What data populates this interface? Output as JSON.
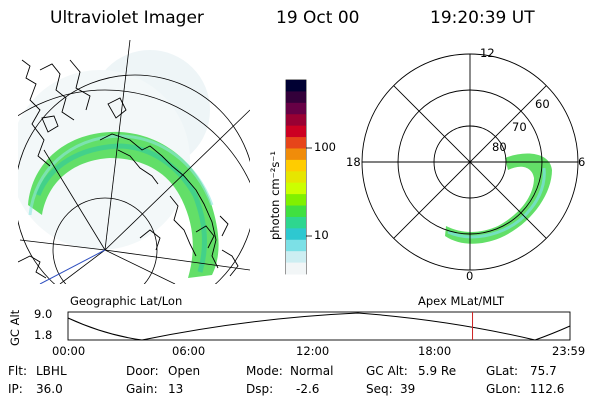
{
  "header": {
    "instrument": "Ultraviolet Imager",
    "date": "19 Oct 00",
    "time": "19:20:39 UT"
  },
  "colorbar": {
    "unit_label": "photon cm⁻²s⁻¹",
    "tick_labels": [
      "100",
      "10"
    ],
    "colors": [
      "#000033",
      "#33003a",
      "#660045",
      "#990033",
      "#cc0022",
      "#e6451a",
      "#f08c0a",
      "#ffcc00",
      "#e6e600",
      "#ccff00",
      "#80f000",
      "#40e040",
      "#2ed68f",
      "#2ec8d0",
      "#7ce0e6",
      "#cdeef2",
      "#f2f6f7"
    ]
  },
  "left_panel": {
    "caption": "Geographic Lat/Lon"
  },
  "right_panel": {
    "caption": "Apex MLat/MLT",
    "mlt_labels": {
      "top": "12",
      "left": "18",
      "right": "6",
      "bottom": "0"
    },
    "lat_labels": [
      "60",
      "70",
      "80"
    ]
  },
  "timeline": {
    "ylabel": "GC Alt",
    "ytick_top": "9.0",
    "ytick_bottom": "1.8",
    "xticks": [
      "00:00",
      "06:00",
      "12:00",
      "18:00",
      "23:59"
    ],
    "current_time_hours": 19.34,
    "marker_color": "#cc2222"
  },
  "info": {
    "flt_label": "Flt:",
    "flt_value": "LBHL",
    "ip_label": "IP:",
    "ip_value": "36.0",
    "door_label": "Door:",
    "door_value": "Open",
    "gain_label": "Gain:",
    "gain_value": "13",
    "mode_label": "Mode:",
    "mode_value": "Normal",
    "dsp_label": "Dsp:",
    "dsp_value": "-2.6",
    "gcalt_label": "GC Alt:",
    "gcalt_value": "5.9 Re",
    "seq_label": "Seq:",
    "seq_value": "39",
    "glat_label": "GLat:",
    "glat_value": "75.7",
    "glon_label": "GLon:",
    "glon_value": "112.6"
  }
}
